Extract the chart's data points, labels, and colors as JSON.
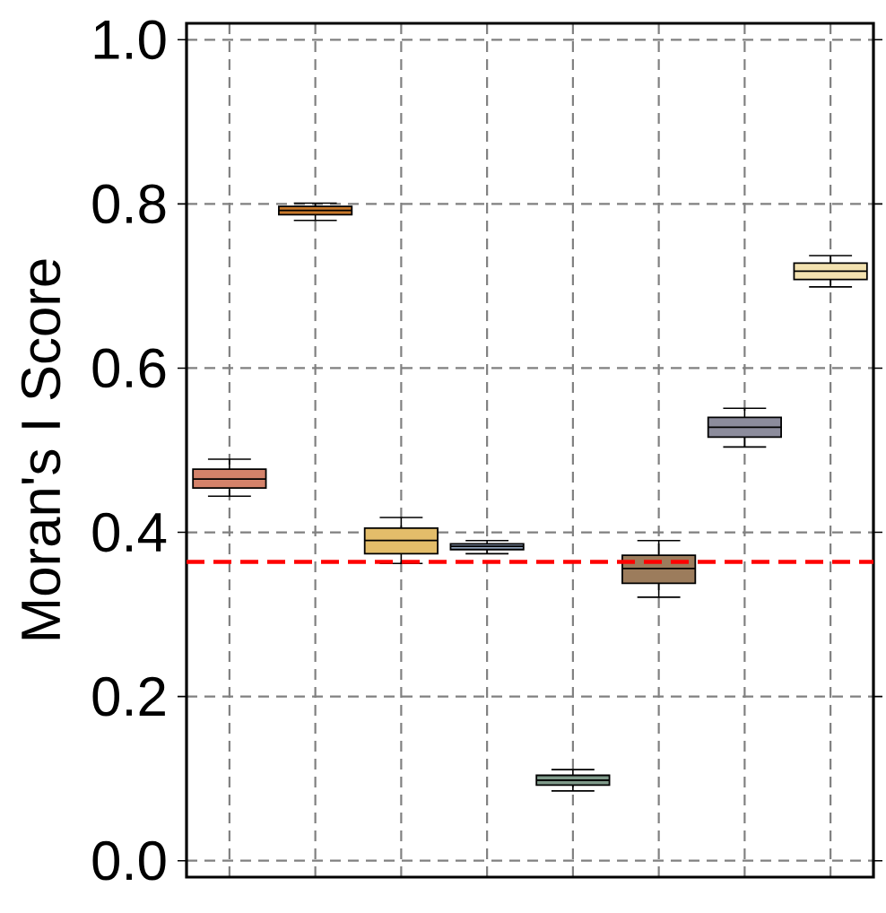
{
  "chart_data": {
    "type": "box",
    "ylabel": "Moran's I Score",
    "categories": [
      null,
      null,
      null,
      null,
      null,
      null,
      null,
      null
    ],
    "boxes": [
      {
        "low": 0.444,
        "q1": 0.454,
        "median": 0.465,
        "q3": 0.477,
        "high": 0.489
      },
      {
        "low": 0.78,
        "q1": 0.787,
        "median": 0.792,
        "q3": 0.797,
        "high": 0.801
      },
      {
        "low": 0.362,
        "q1": 0.374,
        "median": 0.39,
        "q3": 0.405,
        "high": 0.418
      },
      {
        "low": 0.374,
        "q1": 0.379,
        "median": 0.383,
        "q3": 0.386,
        "high": 0.39
      },
      {
        "low": 0.085,
        "q1": 0.092,
        "median": 0.098,
        "q3": 0.104,
        "high": 0.111
      },
      {
        "low": 0.321,
        "q1": 0.338,
        "median": 0.356,
        "q3": 0.372,
        "high": 0.39
      },
      {
        "low": 0.504,
        "q1": 0.516,
        "median": 0.528,
        "q3": 0.54,
        "high": 0.551
      },
      {
        "low": 0.699,
        "q1": 0.708,
        "median": 0.718,
        "q3": 0.728,
        "high": 0.737
      }
    ],
    "colors": [
      "#d4826a",
      "#c8782a",
      "#e3bd6a",
      "#8fa0b8",
      "#7f9a8a",
      "#9c7c5c",
      "#8c8c9c",
      "#f3e2b0"
    ],
    "ref_lines": [
      {
        "axis": "y",
        "value": 0.364,
        "color": "#ff0000",
        "line_style": "dashed"
      }
    ],
    "ylim": [
      -0.02,
      1.02
    ],
    "yticks": [
      {
        "value": 0,
        "label": "0.0"
      },
      {
        "value": 0.2,
        "label": "0.2"
      },
      {
        "value": 0.4,
        "label": "0.4"
      },
      {
        "value": 0.6,
        "label": "0.6"
      },
      {
        "value": 0.8,
        "label": "0.8"
      },
      {
        "value": 1.0,
        "label": "1.0"
      }
    ],
    "grid": true,
    "tick_labels": "y"
  }
}
